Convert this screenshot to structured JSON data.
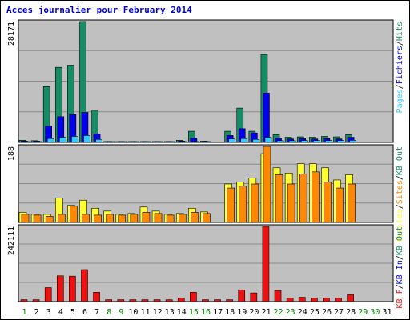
{
  "chart_data": {
    "type": "bar",
    "title": "Acces journalier pour February 2014",
    "days": [
      "1",
      "2",
      "3",
      "4",
      "5",
      "6",
      "7",
      "8",
      "9",
      "10",
      "11",
      "12",
      "13",
      "14",
      "15",
      "16",
      "17",
      "18",
      "19",
      "20",
      "21",
      "22",
      "23",
      "24",
      "25",
      "26",
      "27",
      "28",
      "29",
      "30",
      "31"
    ],
    "weekend_days": [
      1,
      8,
      9,
      15,
      16,
      22,
      23,
      29,
      30
    ],
    "grid": true,
    "colors": {
      "title": "#0000cc",
      "weekend": "#008000",
      "weekday": "#000000",
      "pages": "#33ccff",
      "hits": "#148c66",
      "files": "#0000ee",
      "visits": "#ffff33",
      "sites": "#ff8800",
      "kb": "#ee1111"
    },
    "panels": [
      {
        "max_label": "28171",
        "ylim": [
          0,
          28171
        ],
        "legend": [
          {
            "text": "Pages",
            "color": "#33ccff"
          },
          {
            "text": "/",
            "color": "#000000"
          },
          {
            "text": "Fichiers",
            "color": "#0000ee"
          },
          {
            "text": "/",
            "color": "#000000"
          },
          {
            "text": "Hits",
            "color": "#148c66"
          }
        ],
        "series": [
          {
            "name": "Hits",
            "color": "#148c66",
            "values": [
              500,
              400,
              13000,
              17500,
              18000,
              28171,
              7500,
              200,
              100,
              200,
              200,
              200,
              200,
              500,
              2600,
              300,
              0,
              2600,
              8000,
              2600,
              20500,
              1800,
              1200,
              1300,
              1200,
              1400,
              1300,
              1800,
              0,
              0,
              0
            ]
          },
          {
            "name": "Fichiers",
            "color": "#0000ee",
            "values": [
              300,
              300,
              3800,
              6000,
              6500,
              7000,
              2000,
              100,
              100,
              100,
              100,
              100,
              100,
              300,
              1000,
              200,
              0,
              1600,
              3200,
              2200,
              11500,
              1000,
              800,
              900,
              800,
              900,
              800,
              1200,
              0,
              0,
              0
            ]
          },
          {
            "name": "Pages",
            "color": "#33ccff",
            "values": [
              100,
              100,
              900,
              1200,
              1400,
              1600,
              700,
              50,
              50,
              50,
              50,
              50,
              50,
              100,
              200,
              100,
              0,
              800,
              900,
              700,
              1200,
              400,
              400,
              450,
              450,
              450,
              450,
              500,
              0,
              0,
              0
            ]
          }
        ]
      },
      {
        "max_label": "188",
        "ylim": [
          0,
          188
        ],
        "legend": [
          {
            "text": "Visites",
            "color": "#ffff33"
          },
          {
            "text": "/",
            "color": "#000000"
          },
          {
            "text": "Sites",
            "color": "#ff8800"
          },
          {
            "text": "/",
            "color": "#000000"
          },
          {
            "text": "KB Out",
            "color": "#148c66"
          }
        ],
        "series": [
          {
            "name": "Visites",
            "color": "#ffff33",
            "values": [
              25,
              20,
              20,
              60,
              42,
              55,
              35,
              28,
              20,
              22,
              38,
              28,
              20,
              22,
              35,
              26,
              0,
              95,
              100,
              110,
              170,
              135,
              122,
              145,
              145,
              135,
              105,
              118,
              0,
              0,
              0
            ]
          },
          {
            "name": "Sites",
            "color": "#ff8800",
            "values": [
              20,
              18,
              15,
              20,
              40,
              20,
              18,
              20,
              18,
              20,
              25,
              22,
              18,
              20,
              25,
              22,
              0,
              85,
              90,
              95,
              188,
              118,
              95,
              120,
              125,
              100,
              85,
              95,
              0,
              0,
              0
            ]
          }
        ]
      },
      {
        "max_label": "242111",
        "ylim": [
          0,
          242111
        ],
        "legend": [
          {
            "text": "KB F",
            "color": "#ee1111"
          },
          {
            "text": "/",
            "color": "#000000"
          },
          {
            "text": "KB In",
            "color": "#0000ee"
          },
          {
            "text": "/",
            "color": "#000000"
          },
          {
            "text": "KB Out",
            "color": "#148c66"
          }
        ],
        "series": [
          {
            "name": "KB F",
            "color": "#ee1111",
            "values": [
              6000,
              6000,
              45000,
              83000,
              82000,
              103000,
              30000,
              6000,
              6000,
              6000,
              6000,
              6000,
              6000,
              12000,
              30000,
              6000,
              6000,
              6000,
              38000,
              28000,
              242111,
              36000,
              12000,
              14000,
              12000,
              12000,
              12000,
              22000,
              0,
              0,
              0
            ]
          }
        ]
      }
    ]
  }
}
